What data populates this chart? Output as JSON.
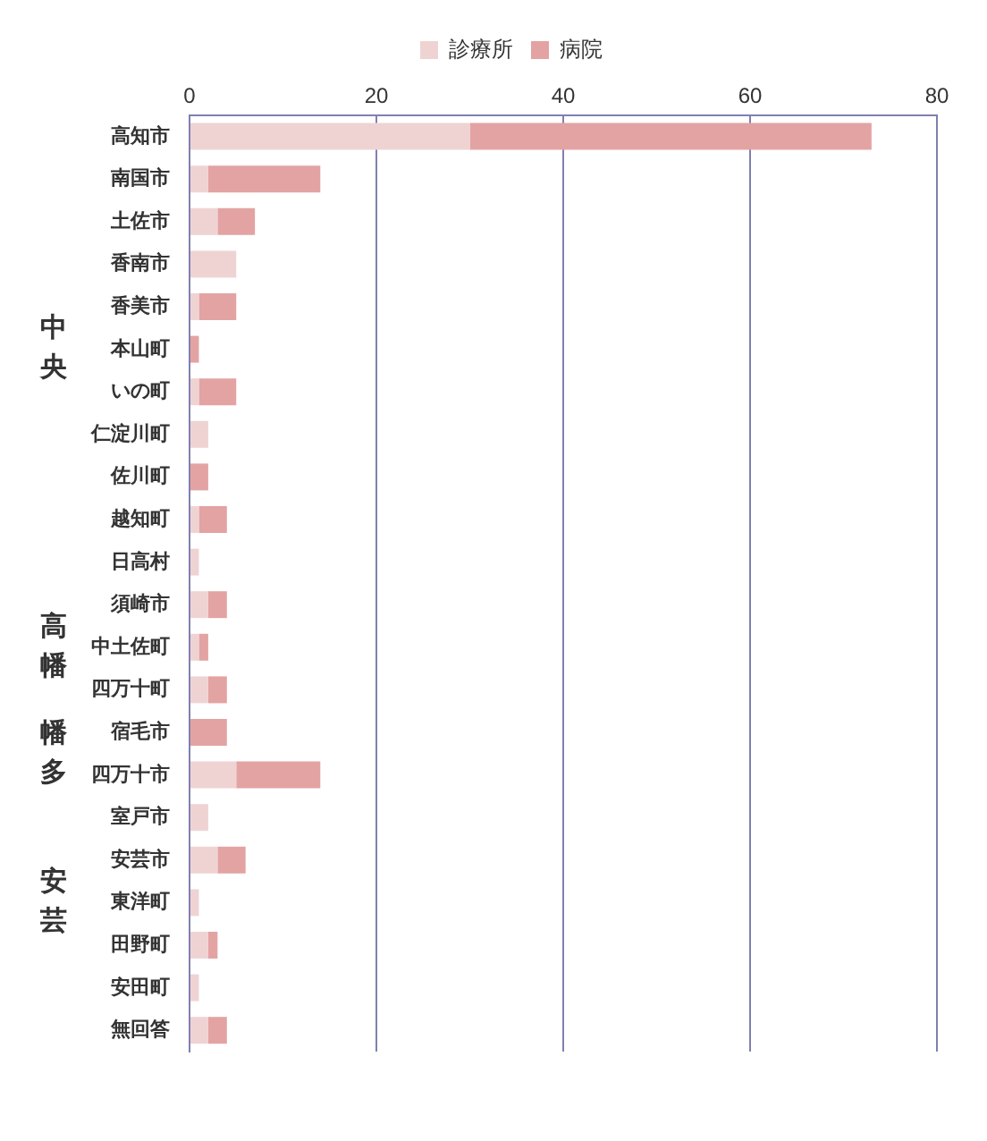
{
  "chart_data": {
    "type": "bar",
    "orientation": "horizontal",
    "stacked": true,
    "categories": [
      "高知市",
      "南国市",
      "土佐市",
      "香南市",
      "香美市",
      "本山町",
      "いの町",
      "仁淀川町",
      "佐川町",
      "越知町",
      "日高村",
      "須崎市",
      "中土佐町",
      "四万十町",
      "宿毛市",
      "四万十市",
      "室戸市",
      "安芸市",
      "東洋町",
      "田野町",
      "安田町",
      "無回答"
    ],
    "series": [
      {
        "name": "診療所",
        "color": "#efd3d3",
        "values": [
          30,
          2,
          3,
          5,
          1,
          0,
          1,
          2,
          0,
          1,
          1,
          2,
          1,
          2,
          0,
          5,
          2,
          3,
          1,
          2,
          1,
          2
        ]
      },
      {
        "name": "病院",
        "color": "#e3a3a3",
        "values": [
          43,
          12,
          4,
          0,
          4,
          1,
          4,
          0,
          2,
          3,
          0,
          2,
          1,
          2,
          4,
          9,
          0,
          3,
          0,
          1,
          0,
          2
        ]
      }
    ],
    "xlim": [
      0,
      80
    ],
    "xticks": [
      0,
      20,
      40,
      60,
      80
    ],
    "grid": "x",
    "legend": "top",
    "annotations": [
      "中央",
      "高幡",
      "幡多",
      "安芸"
    ]
  }
}
